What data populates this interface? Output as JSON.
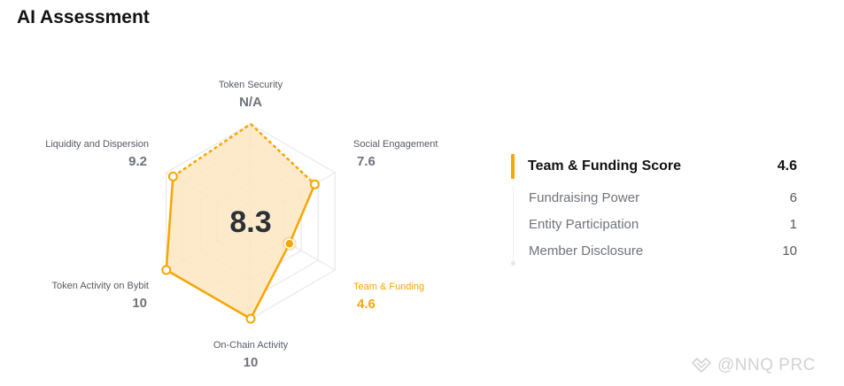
{
  "header": {
    "title": "AI Assessment"
  },
  "chart_data": {
    "type": "radar",
    "title": "",
    "center_score": "8.3",
    "max": 10,
    "axes": [
      {
        "name": "Token Security",
        "value": null,
        "display": "N/A"
      },
      {
        "name": "Social Engagement",
        "value": 7.6,
        "display": "7.6"
      },
      {
        "name": "Team & Funding",
        "value": 4.6,
        "display": "4.6",
        "highlighted": true
      },
      {
        "name": "On-Chain Activity",
        "value": 10,
        "display": "10"
      },
      {
        "name": "Token Activity on Bybit",
        "value": 10,
        "display": "10"
      },
      {
        "name": "Liquidity and Dispersion",
        "value": 9.2,
        "display": "9.2"
      }
    ],
    "colors": {
      "accent": "#f7a600",
      "fill": "#fbe6c2",
      "grid": "#e3e3e3"
    }
  },
  "panel": {
    "title": "Team & Funding Score",
    "score": "4.6",
    "items": [
      {
        "label": "Fundraising Power",
        "value": "6"
      },
      {
        "label": "Entity Participation",
        "value": "1"
      },
      {
        "label": "Member Disclosure",
        "value": "10"
      }
    ]
  },
  "watermark": {
    "text": "@NNQ PRC"
  }
}
